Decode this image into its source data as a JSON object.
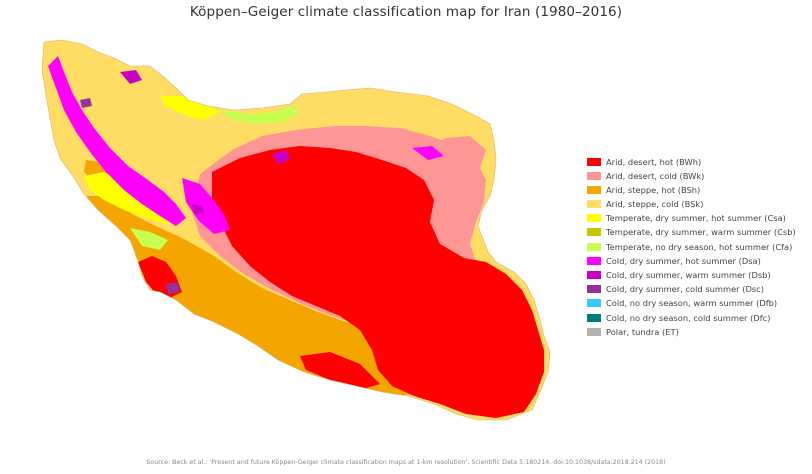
{
  "map": {
    "title": "Köppen–Geiger climate classification map for Iran (1980–2016)",
    "region": "Iran",
    "period": "1980–2016",
    "source": "Source: Beck et al.: 'Present and future Köppen-Geiger climate classification maps at 1-km resolution', Scientific Data 5:180214, doi:10.1038/sdata.2018.214 (2018)"
  },
  "legend": [
    {
      "code": "BWh",
      "label": "Arid, desert, hot (BWh)",
      "color": "#ff0000"
    },
    {
      "code": "BWk",
      "label": "Arid, desert, cold (BWk)",
      "color": "#ff9696"
    },
    {
      "code": "BSh",
      "label": "Arid, steppe, hot (BSh)",
      "color": "#f5a500"
    },
    {
      "code": "BSk",
      "label": "Arid, steppe, cold (BSk)",
      "color": "#ffdc64"
    },
    {
      "code": "Csa",
      "label": "Temperate, dry summer, hot summer (Csa)",
      "color": "#ffff00"
    },
    {
      "code": "Csb",
      "label": "Temperate, dry summer, warm summer (Csb)",
      "color": "#c8c800"
    },
    {
      "code": "Cfa",
      "label": "Temperate, no dry season, hot summer (Cfa)",
      "color": "#c8ff50"
    },
    {
      "code": "Dsa",
      "label": "Cold, dry summer, hot summer (Dsa)",
      "color": "#ff00ff"
    },
    {
      "code": "Dsb",
      "label": "Cold, dry summer, warm summer (Dsb)",
      "color": "#c800c8"
    },
    {
      "code": "Dsc",
      "label": "Cold, dry summer, cold summer (Dsc)",
      "color": "#963296"
    },
    {
      "code": "Dfb",
      "label": "Cold, no dry season, warm summer (Dfb)",
      "color": "#37c8ff"
    },
    {
      "code": "Dfc",
      "label": "Cold, no dry season, cold summer (Dfc)",
      "color": "#007d7d"
    },
    {
      "code": "ET",
      "label": "Polar, tundra (ET)",
      "color": "#b2b2b2"
    }
  ]
}
